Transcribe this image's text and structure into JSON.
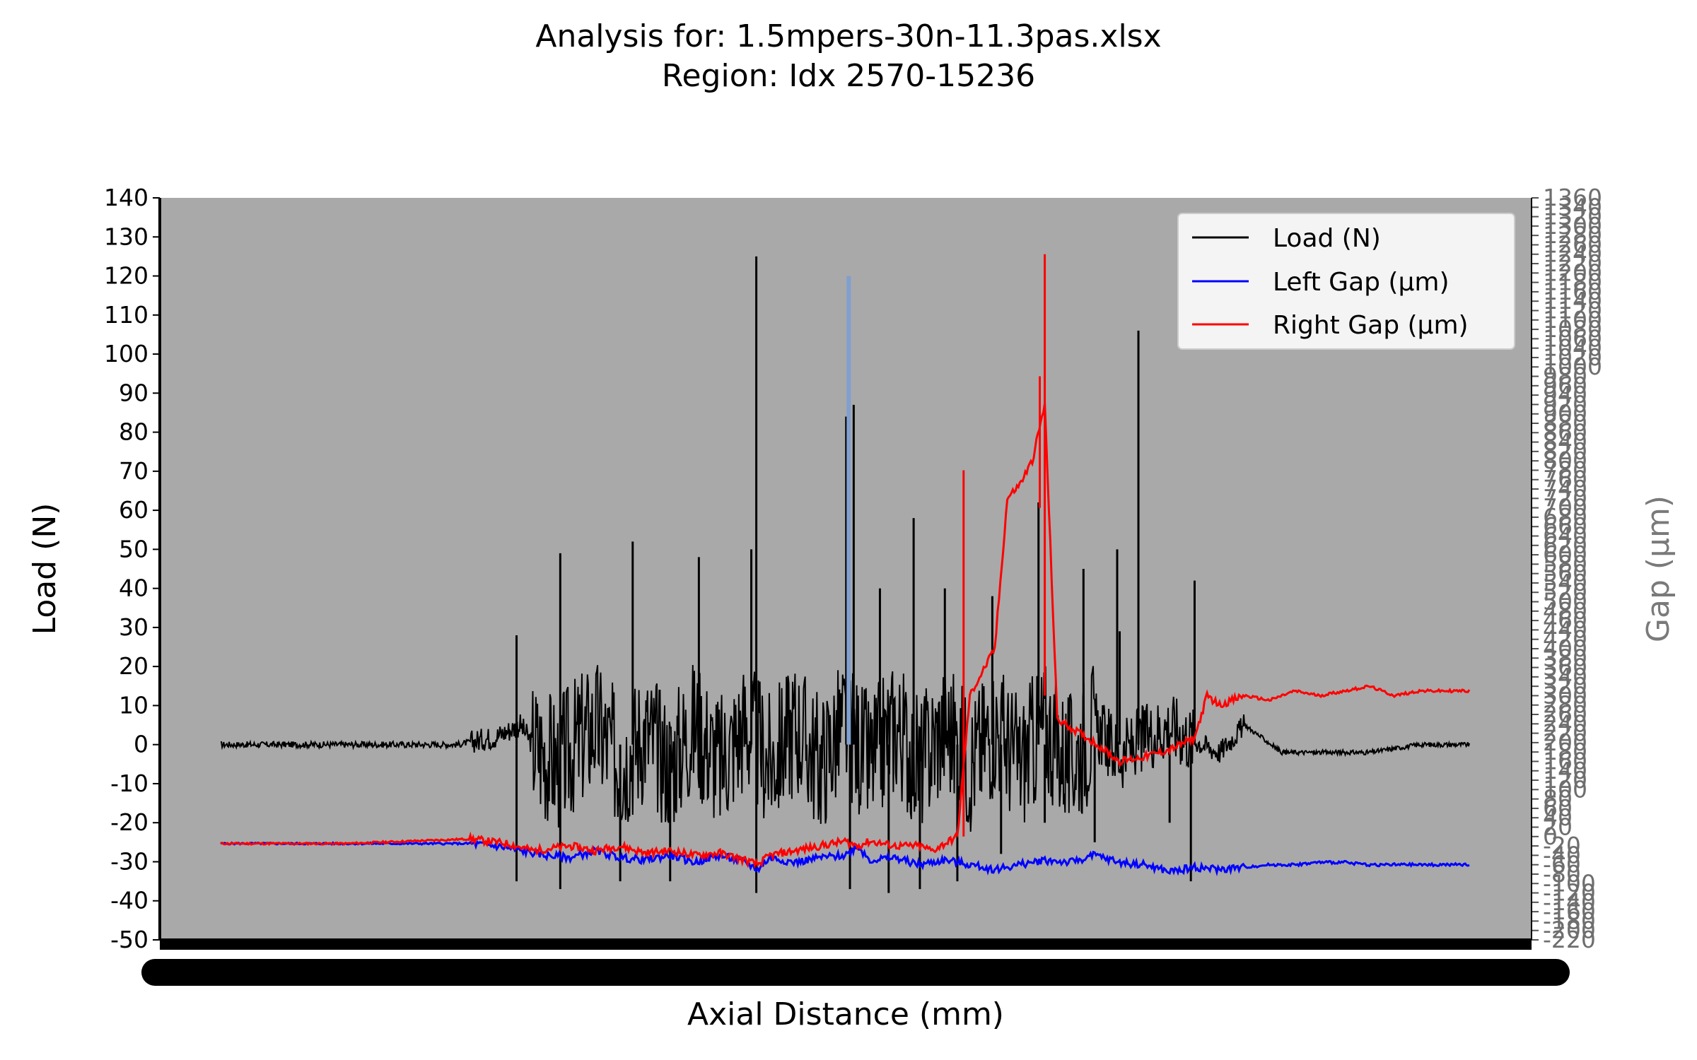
{
  "chart_data": {
    "type": "line",
    "title": "Analysis for: 1.5mpers-30n-11.3pas.xlsx",
    "subtitle": "Region: Idx 2570-15236",
    "xlabel": "Axial Distance (mm)",
    "ylabel": "Load (N)",
    "ylabel_right": "Gap (µm)",
    "ylim": [
      -50,
      140
    ],
    "ylim_right": [
      -220,
      1360
    ],
    "yticks": [
      "-50",
      "-40",
      "-30",
      "-20",
      "-10",
      "0",
      "10",
      "20",
      "30",
      "40",
      "50",
      "60",
      "70",
      "80",
      "90",
      "100",
      "110",
      "120",
      "130",
      "140"
    ],
    "yticks_right": [
      "-220",
      "-200",
      "-180",
      "-160",
      "-140",
      "-120",
      "-100",
      "-80",
      "-60",
      "-40",
      "-20",
      "0",
      "20",
      "40",
      "60",
      "80",
      "100",
      "120",
      "140",
      "160",
      "180",
      "200",
      "220",
      "240",
      "260",
      "280",
      "300",
      "320",
      "340",
      "360",
      "380",
      "400",
      "420",
      "440",
      "460",
      "480",
      "500",
      "520",
      "540",
      "560",
      "580",
      "600",
      "620",
      "640",
      "660",
      "680",
      "700",
      "720",
      "740",
      "760",
      "780",
      "800",
      "820",
      "840",
      "860",
      "880",
      "900",
      "920",
      "940",
      "960",
      "980",
      "1000",
      "1020",
      "1040",
      "1060",
      "1080",
      "1100",
      "1120",
      "1140",
      "1160",
      "1180",
      "1200",
      "1220",
      "1240",
      "1260",
      "1280",
      "1300",
      "1320",
      "1340",
      "1360"
    ],
    "x_range": [
      0,
      1
    ],
    "plot_background": "#a9a9a9",
    "grid": false,
    "legend": {
      "placement": "top-right",
      "entries": [
        "Load (N)",
        "Left Gap (µm)",
        "Right Gap (µm)"
      ]
    },
    "series": [
      {
        "name": "Load (N)",
        "axis": "left",
        "color": "#000000",
        "x": [
          0.0,
          0.05,
          0.1,
          0.15,
          0.19,
          0.22,
          0.24,
          0.25,
          0.27,
          0.3,
          0.32,
          0.34,
          0.36,
          0.38,
          0.4,
          0.42,
          0.44,
          0.46,
          0.48,
          0.5,
          0.52,
          0.54,
          0.56,
          0.58,
          0.6,
          0.62,
          0.64,
          0.66,
          0.68,
          0.7,
          0.72,
          0.74,
          0.76,
          0.78,
          0.8,
          0.82,
          0.85,
          0.88,
          0.92,
          0.96,
          1.0
        ],
        "y": [
          0,
          0,
          0,
          0,
          0,
          2,
          5,
          0,
          -5,
          5,
          -5,
          3,
          -5,
          5,
          -5,
          5,
          -5,
          5,
          -5,
          5,
          -5,
          5,
          -5,
          5,
          -5,
          5,
          -5,
          5,
          -5,
          5,
          -3,
          2,
          5,
          1,
          -2,
          5,
          -2,
          -2,
          -2,
          0,
          0
        ],
        "spikes_up": [
          {
            "x": 0.237,
            "y": 28
          },
          {
            "x": 0.272,
            "y": 49
          },
          {
            "x": 0.33,
            "y": 52
          },
          {
            "x": 0.383,
            "y": 48
          },
          {
            "x": 0.425,
            "y": 50
          },
          {
            "x": 0.429,
            "y": 125
          },
          {
            "x": 0.501,
            "y": 84
          },
          {
            "x": 0.507,
            "y": 87
          },
          {
            "x": 0.528,
            "y": 40
          },
          {
            "x": 0.555,
            "y": 58
          },
          {
            "x": 0.58,
            "y": 40
          },
          {
            "x": 0.618,
            "y": 38
          },
          {
            "x": 0.655,
            "y": 62
          },
          {
            "x": 0.691,
            "y": 45
          },
          {
            "x": 0.735,
            "y": 106
          },
          {
            "x": 0.718,
            "y": 50
          },
          {
            "x": 0.72,
            "y": 29
          },
          {
            "x": 0.78,
            "y": 42
          }
        ],
        "spikes_down": [
          {
            "x": 0.237,
            "y": -35
          },
          {
            "x": 0.272,
            "y": -37
          },
          {
            "x": 0.32,
            "y": -35
          },
          {
            "x": 0.36,
            "y": -35
          },
          {
            "x": 0.429,
            "y": -38
          },
          {
            "x": 0.504,
            "y": -37
          },
          {
            "x": 0.535,
            "y": -38
          },
          {
            "x": 0.56,
            "y": -37
          },
          {
            "x": 0.59,
            "y": -35
          },
          {
            "x": 0.625,
            "y": -28
          },
          {
            "x": 0.66,
            "y": -20
          },
          {
            "x": 0.7,
            "y": -25
          },
          {
            "x": 0.76,
            "y": -20
          },
          {
            "x": 0.777,
            "y": -35
          }
        ]
      },
      {
        "name": "Left Gap (µm)",
        "axis": "right",
        "color": "#0000ff",
        "x": [
          0.0,
          0.05,
          0.1,
          0.15,
          0.2,
          0.22,
          0.24,
          0.26,
          0.28,
          0.3,
          0.32,
          0.34,
          0.36,
          0.38,
          0.4,
          0.42,
          0.43,
          0.44,
          0.46,
          0.48,
          0.5,
          0.51,
          0.52,
          0.54,
          0.56,
          0.58,
          0.6,
          0.62,
          0.64,
          0.66,
          0.68,
          0.7,
          0.72,
          0.74,
          0.76,
          0.78,
          0.8,
          0.82,
          0.84,
          0.86,
          0.88,
          0.9,
          0.92,
          0.94,
          0.96,
          0.98,
          1.0
        ],
        "y": [
          -15,
          -15,
          -15,
          -15,
          -15,
          -20,
          -30,
          -40,
          -45,
          -30,
          -45,
          -50,
          -40,
          -55,
          -40,
          -55,
          -70,
          -45,
          -55,
          -45,
          -40,
          -20,
          -50,
          -45,
          -60,
          -50,
          -60,
          -70,
          -60,
          -50,
          -55,
          -40,
          -55,
          -60,
          -75,
          -65,
          -70,
          -65,
          -60,
          -60,
          -55,
          -55,
          -60,
          -60,
          -60,
          -60,
          -60
        ]
      },
      {
        "name": "Right Gap (µm)",
        "axis": "right",
        "color": "#ff0000",
        "x": [
          0.0,
          0.05,
          0.1,
          0.15,
          0.2,
          0.23,
          0.25,
          0.28,
          0.3,
          0.32,
          0.34,
          0.36,
          0.38,
          0.4,
          0.42,
          0.43,
          0.44,
          0.46,
          0.48,
          0.5,
          0.51,
          0.52,
          0.54,
          0.56,
          0.57,
          0.59,
          0.6,
          0.62,
          0.63,
          0.64,
          0.65,
          0.66,
          0.67,
          0.7,
          0.72,
          0.74,
          0.76,
          0.78,
          0.79,
          0.8,
          0.82,
          0.84,
          0.86,
          0.88,
          0.9,
          0.92,
          0.94,
          0.96,
          0.98,
          1.0
        ],
        "y": [
          -15,
          -15,
          -15,
          -10,
          -5,
          -15,
          -30,
          -20,
          -30,
          -20,
          -35,
          -30,
          -40,
          -35,
          -50,
          -60,
          -40,
          -30,
          -20,
          -10,
          -20,
          -10,
          -20,
          -20,
          -30,
          0,
          300,
          400,
          720,
          750,
          800,
          920,
          250,
          200,
          160,
          170,
          185,
          210,
          300,
          280,
          300,
          290,
          310,
          300,
          310,
          320,
          300,
          310,
          310,
          310
        ]
      }
    ]
  }
}
